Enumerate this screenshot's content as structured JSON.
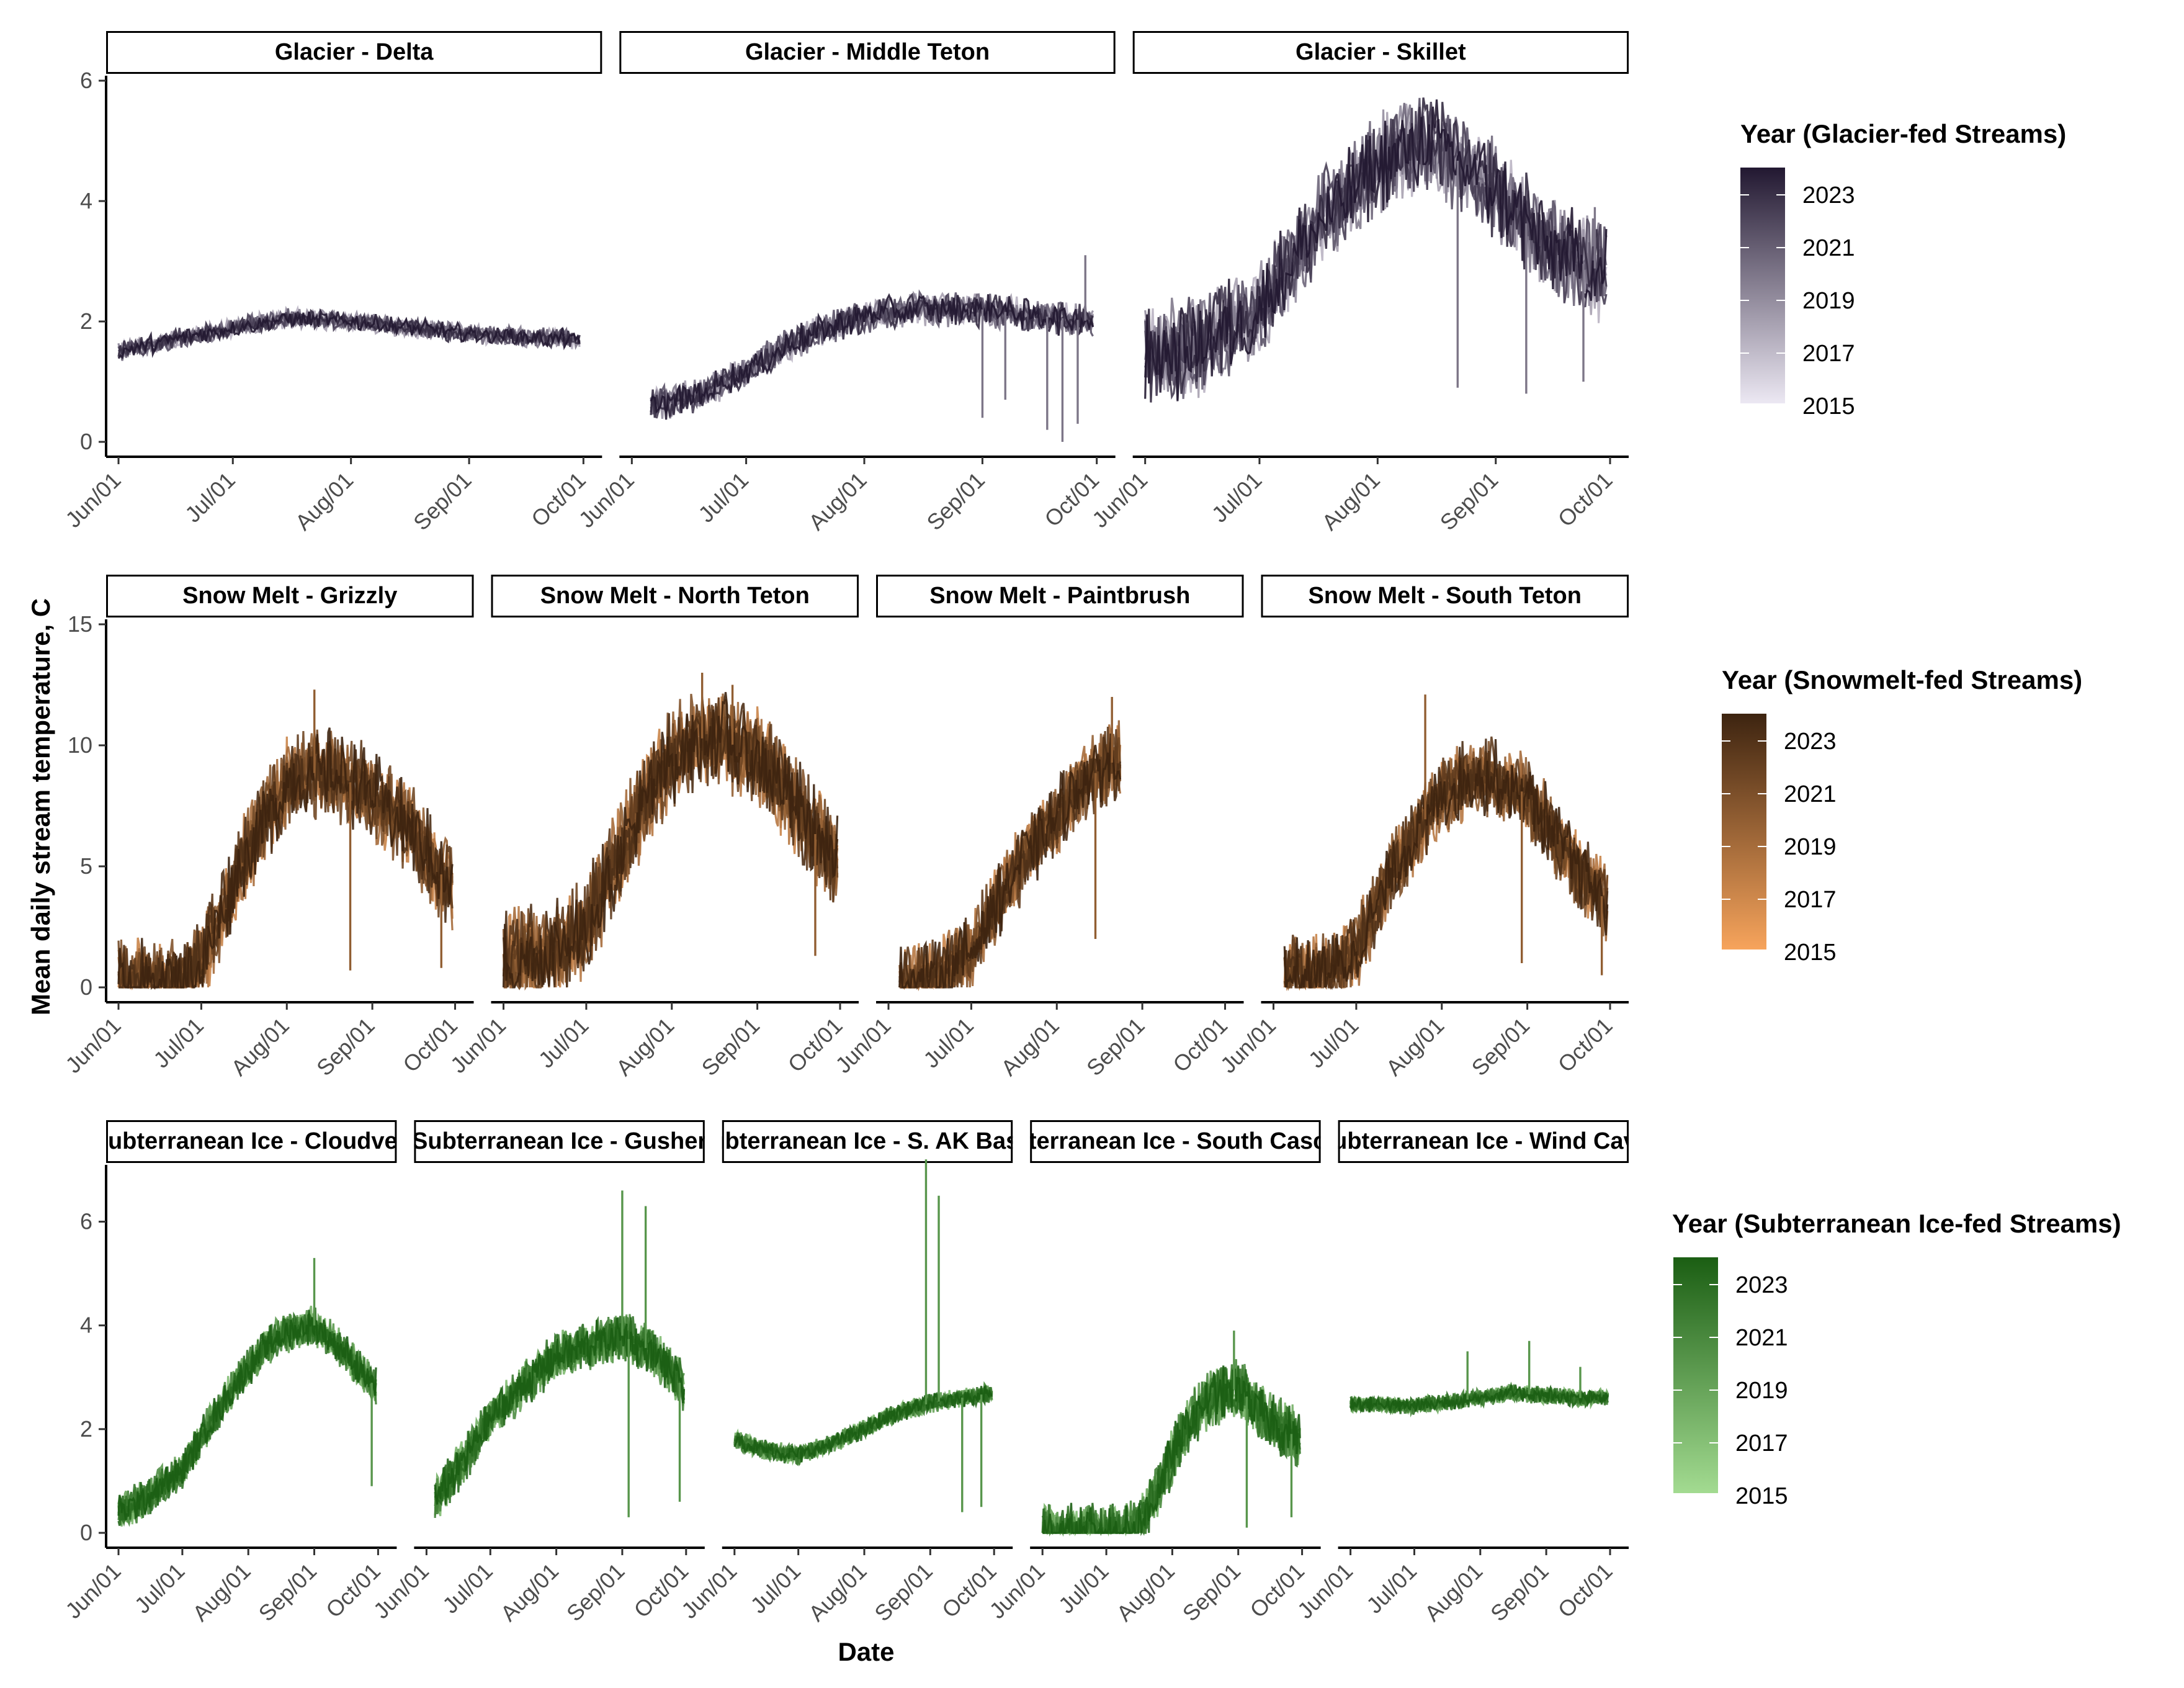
{
  "chart_data": {
    "type": "line",
    "xlabel": "Date",
    "ylabel": "Mean daily stream temperature, C",
    "x_ticks": [
      "Jun/01",
      "Jul/01",
      "Aug/01",
      "Sep/01",
      "Oct/01"
    ],
    "x_domain": [
      "2023-06-01",
      "2023-10-01"
    ],
    "color_scale": "year (continuous)",
    "rows": [
      {
        "group": "Glacier",
        "ylim": [
          0,
          6
        ],
        "y_ticks": [
          0,
          2,
          4,
          6
        ],
        "legend": {
          "title": "Year (Glacier-fed Streams)",
          "labels": [
            "2023",
            "2021",
            "2019",
            "2017",
            "2015"
          ],
          "color_high": "#221831",
          "color_low": "#ECE8F3"
        },
        "panels": [
          {
            "label": "Glacier - Delta",
            "data_start": "06-01",
            "data_end": "09-30",
            "profile": [
              [
                "06-01",
                1.5
              ],
              [
                "06-15",
                1.7
              ],
              [
                "07-01",
                1.9
              ],
              [
                "07-15",
                2.05
              ],
              [
                "08-01",
                2.0
              ],
              [
                "08-15",
                1.9
              ],
              [
                "09-01",
                1.8
              ],
              [
                "09-15",
                1.75
              ],
              [
                "09-30",
                1.7
              ]
            ],
            "spread": 0.35,
            "spikes": []
          },
          {
            "label": "Glacier - Middle Teton",
            "data_start": "06-06",
            "data_end": "09-30",
            "profile": [
              [
                "06-06",
                0.6
              ],
              [
                "06-20",
                0.8
              ],
              [
                "07-01",
                1.2
              ],
              [
                "07-15",
                1.7
              ],
              [
                "08-01",
                2.1
              ],
              [
                "08-15",
                2.2
              ],
              [
                "09-01",
                2.2
              ],
              [
                "09-15",
                2.1
              ],
              [
                "09-30",
                2.0
              ]
            ],
            "spread": 0.6,
            "spikes": [
              [
                "09-01",
                0.4
              ],
              [
                "09-07",
                0.7
              ],
              [
                "09-18",
                0.2
              ],
              [
                "09-22",
                0.0
              ],
              [
                "09-26",
                0.3
              ],
              [
                "09-28",
                3.1
              ]
            ]
          },
          {
            "label": "Glacier - Skillet",
            "data_start": "06-01",
            "data_end": "09-30",
            "profile": [
              [
                "06-01",
                1.4
              ],
              [
                "06-15",
                1.6
              ],
              [
                "07-01",
                2.2
              ],
              [
                "07-15",
                3.5
              ],
              [
                "08-01",
                4.6
              ],
              [
                "08-15",
                5.0
              ],
              [
                "09-01",
                4.2
              ],
              [
                "09-15",
                3.2
              ],
              [
                "09-30",
                2.8
              ]
            ],
            "spread": 1.8,
            "spikes": [
              [
                "08-22",
                0.9
              ],
              [
                "09-09",
                0.8
              ],
              [
                "09-24",
                1.0
              ],
              [
                "09-27",
                3.9
              ]
            ]
          }
        ]
      },
      {
        "group": "Snow Melt",
        "ylim": [
          0,
          15
        ],
        "y_ticks": [
          0,
          5,
          10,
          15
        ],
        "legend": {
          "title": "Year (Snowmelt-fed Streams)",
          "labels": [
            "2023",
            "2021",
            "2019",
            "2017",
            "2015"
          ],
          "color_high": "#3D2410",
          "color_low": "#F7A45C"
        },
        "panels": [
          {
            "label": "Snow Melt - Grizzly",
            "data_start": "06-01",
            "data_end": "09-30",
            "profile": [
              [
                "06-01",
                0.1
              ],
              [
                "06-20",
                0.2
              ],
              [
                "07-01",
                0.8
              ],
              [
                "07-15",
                5.0
              ],
              [
                "08-01",
                8.5
              ],
              [
                "08-15",
                9.0
              ],
              [
                "09-01",
                8.0
              ],
              [
                "09-15",
                6.5
              ],
              [
                "09-30",
                4.0
              ]
            ],
            "spread": 4.0,
            "spikes": [
              [
                "08-11",
                12.3
              ],
              [
                "08-24",
                0.7
              ],
              [
                "09-26",
                0.8
              ]
            ]
          },
          {
            "label": "Snow Melt - North Teton",
            "data_start": "06-01",
            "data_end": "09-30",
            "profile": [
              [
                "06-01",
                1.0
              ],
              [
                "06-20",
                1.5
              ],
              [
                "07-01",
                2.5
              ],
              [
                "07-15",
                6.0
              ],
              [
                "08-01",
                9.5
              ],
              [
                "08-15",
                10.5
              ],
              [
                "09-01",
                9.5
              ],
              [
                "09-15",
                7.5
              ],
              [
                "09-30",
                5.0
              ]
            ],
            "spread": 4.5,
            "spikes": [
              [
                "08-12",
                13.0
              ],
              [
                "08-23",
                12.5
              ],
              [
                "09-22",
                1.3
              ]
            ]
          },
          {
            "label": "Snow Melt - Paintbrush",
            "data_start": "06-05",
            "data_end": "08-24",
            "profile": [
              [
                "06-05",
                0.1
              ],
              [
                "06-20",
                0.5
              ],
              [
                "07-01",
                1.5
              ],
              [
                "07-15",
                4.5
              ],
              [
                "08-01",
                7.0
              ],
              [
                "08-10",
                8.5
              ],
              [
                "08-24",
                9.5
              ]
            ],
            "spread": 3.5,
            "spikes": [
              [
                "08-21",
                12.0
              ],
              [
                "08-15",
                2.0
              ]
            ]
          },
          {
            "label": "Snow Melt - South Teton",
            "data_start": "06-05",
            "data_end": "09-30",
            "profile": [
              [
                "06-05",
                0.4
              ],
              [
                "06-20",
                0.6
              ],
              [
                "07-01",
                1.5
              ],
              [
                "07-15",
                5.0
              ],
              [
                "08-01",
                8.0
              ],
              [
                "08-15",
                8.8
              ],
              [
                "09-01",
                8.0
              ],
              [
                "09-15",
                5.5
              ],
              [
                "09-30",
                3.5
              ]
            ],
            "spread": 3.5,
            "spikes": [
              [
                "07-26",
                12.1
              ],
              [
                "08-30",
                1.0
              ],
              [
                "09-28",
                0.5
              ]
            ]
          }
        ]
      },
      {
        "group": "Subterranean Ice",
        "ylim": [
          0,
          7
        ],
        "y_ticks": [
          0,
          2,
          4,
          6
        ],
        "legend": {
          "title": "Year (Subterranean Ice-fed Streams)",
          "labels": [
            "2023",
            "2021",
            "2019",
            "2017",
            "2015"
          ],
          "color_high": "#1B5E13",
          "color_low": "#A3DB91"
        },
        "panels": [
          {
            "label": "Subterranean Ice - Cloudveil",
            "data_start": "06-01",
            "data_end": "09-30",
            "profile": [
              [
                "06-01",
                0.4
              ],
              [
                "06-15",
                0.7
              ],
              [
                "07-01",
                1.2
              ],
              [
                "07-15",
                2.2
              ],
              [
                "08-01",
                3.2
              ],
              [
                "08-15",
                3.8
              ],
              [
                "09-01",
                4.0
              ],
              [
                "09-15",
                3.5
              ],
              [
                "09-30",
                2.8
              ]
            ],
            "spread": 0.8,
            "spikes": [
              [
                "09-01",
                5.3
              ],
              [
                "09-28",
                0.9
              ]
            ]
          },
          {
            "label": "Subterranean Ice - Gusher",
            "data_start": "06-05",
            "data_end": "09-30",
            "profile": [
              [
                "06-05",
                0.6
              ],
              [
                "06-20",
                1.5
              ],
              [
                "07-01",
                2.2
              ],
              [
                "07-15",
                2.8
              ],
              [
                "08-01",
                3.4
              ],
              [
                "08-15",
                3.6
              ],
              [
                "09-01",
                3.8
              ],
              [
                "09-15",
                3.5
              ],
              [
                "09-30",
                2.8
              ]
            ],
            "spread": 1.0,
            "spikes": [
              [
                "09-01",
                6.6
              ],
              [
                "09-12",
                6.3
              ],
              [
                "09-04",
                0.3
              ],
              [
                "09-28",
                0.6
              ]
            ]
          },
          {
            "label": "Subterranean Ice - S. AK Basin",
            "data_start": "06-01",
            "data_end": "09-30",
            "profile": [
              [
                "06-01",
                1.8
              ],
              [
                "06-15",
                1.6
              ],
              [
                "07-01",
                1.5
              ],
              [
                "07-15",
                1.7
              ],
              [
                "08-01",
                2.0
              ],
              [
                "08-15",
                2.3
              ],
              [
                "09-01",
                2.5
              ],
              [
                "09-15",
                2.6
              ],
              [
                "09-30",
                2.7
              ]
            ],
            "spread": 0.4,
            "spikes": [
              [
                "08-30",
                7.2
              ],
              [
                "09-05",
                6.5
              ],
              [
                "09-16",
                0.4
              ],
              [
                "09-25",
                0.5
              ]
            ]
          },
          {
            "label": "Subterranean Ice - South Cascade",
            "data_start": "06-01",
            "data_end": "09-30",
            "profile": [
              [
                "06-01",
                0.0
              ],
              [
                "07-10",
                0.0
              ],
              [
                "07-20",
                0.3
              ],
              [
                "08-01",
                1.5
              ],
              [
                "08-15",
                2.5
              ],
              [
                "09-01",
                2.8
              ],
              [
                "09-15",
                2.2
              ],
              [
                "09-30",
                1.8
              ]
            ],
            "spread": 1.2,
            "spikes": [
              [
                "08-30",
                3.9
              ],
              [
                "09-05",
                0.1
              ],
              [
                "09-26",
                0.3
              ]
            ]
          },
          {
            "label": "Subterranean Ice - Wind Cave",
            "data_start": "06-01",
            "data_end": "09-30",
            "profile": [
              [
                "06-01",
                2.5
              ],
              [
                "07-01",
                2.45
              ],
              [
                "08-01",
                2.6
              ],
              [
                "08-15",
                2.7
              ],
              [
                "09-01",
                2.65
              ],
              [
                "09-15",
                2.6
              ],
              [
                "09-30",
                2.6
              ]
            ],
            "spread": 0.35,
            "spikes": [
              [
                "07-26",
                3.5
              ],
              [
                "08-24",
                3.7
              ],
              [
                "09-17",
                3.2
              ]
            ]
          }
        ]
      }
    ]
  }
}
